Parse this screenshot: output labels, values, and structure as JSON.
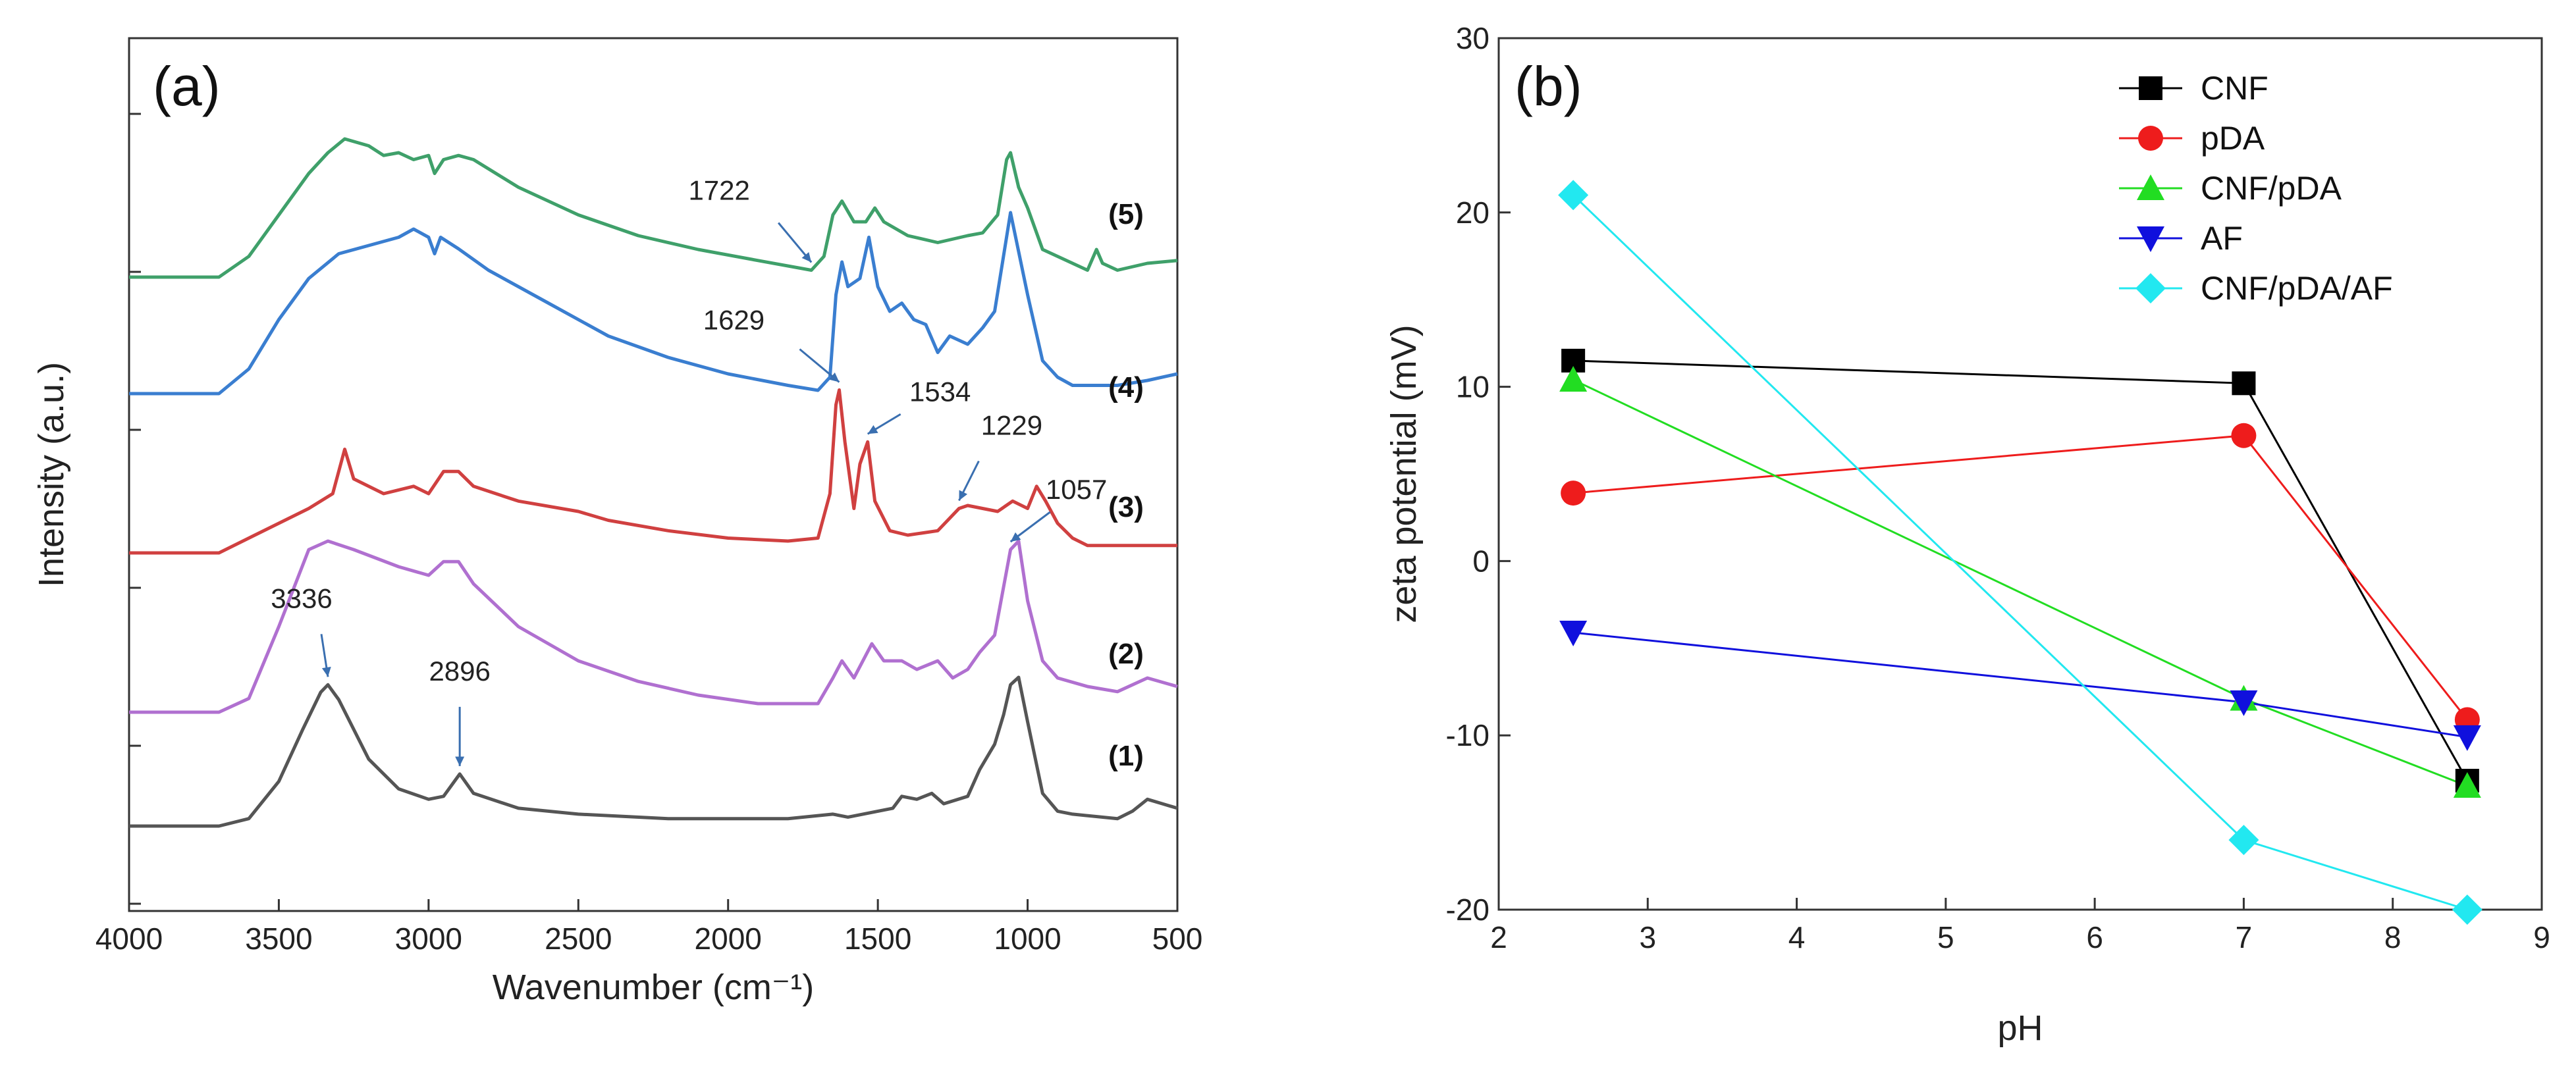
{
  "chart_data": [
    {
      "panel": "(a)",
      "type": "line",
      "title": "",
      "xlabel": "Wavenumber (cm⁻¹)",
      "ylabel": "Intensity (a.u.)",
      "xlim": [
        4000,
        500
      ],
      "x_reversed": true,
      "xticks": [
        4000,
        3500,
        3000,
        2500,
        2000,
        1500,
        1000,
        500
      ],
      "yticks_shown": false,
      "series": [
        {
          "name": "(1)",
          "color": "#555555",
          "offset": 0,
          "points": [
            [
              4000,
              0.0
            ],
            [
              3700,
              0.0
            ],
            [
              3600,
              0.05
            ],
            [
              3500,
              0.3
            ],
            [
              3420,
              0.65
            ],
            [
              3360,
              0.9
            ],
            [
              3336,
              0.95
            ],
            [
              3300,
              0.85
            ],
            [
              3200,
              0.45
            ],
            [
              3100,
              0.25
            ],
            [
              3000,
              0.18
            ],
            [
              2950,
              0.2
            ],
            [
              2896,
              0.35
            ],
            [
              2850,
              0.22
            ],
            [
              2700,
              0.12
            ],
            [
              2500,
              0.08
            ],
            [
              2200,
              0.05
            ],
            [
              2000,
              0.05
            ],
            [
              1800,
              0.05
            ],
            [
              1650,
              0.08
            ],
            [
              1600,
              0.06
            ],
            [
              1450,
              0.12
            ],
            [
              1420,
              0.2
            ],
            [
              1370,
              0.18
            ],
            [
              1320,
              0.22
            ],
            [
              1280,
              0.15
            ],
            [
              1200,
              0.2
            ],
            [
              1160,
              0.38
            ],
            [
              1110,
              0.55
            ],
            [
              1080,
              0.75
            ],
            [
              1057,
              0.95
            ],
            [
              1030,
              1.0
            ],
            [
              1000,
              0.7
            ],
            [
              950,
              0.22
            ],
            [
              900,
              0.1
            ],
            [
              850,
              0.08
            ],
            [
              700,
              0.05
            ],
            [
              650,
              0.1
            ],
            [
              600,
              0.18
            ],
            [
              550,
              0.15
            ],
            [
              500,
              0.12
            ]
          ]
        },
        {
          "name": "(2)",
          "color": "#b070d0",
          "offset": 0,
          "points": [
            [
              4000,
              0.0
            ],
            [
              3700,
              0.0
            ],
            [
              3600,
              0.08
            ],
            [
              3500,
              0.5
            ],
            [
              3400,
              0.95
            ],
            [
              3336,
              1.0
            ],
            [
              3250,
              0.95
            ],
            [
              3100,
              0.85
            ],
            [
              3000,
              0.8
            ],
            [
              2950,
              0.88
            ],
            [
              2900,
              0.88
            ],
            [
              2850,
              0.75
            ],
            [
              2700,
              0.5
            ],
            [
              2500,
              0.3
            ],
            [
              2300,
              0.18
            ],
            [
              2100,
              0.1
            ],
            [
              1900,
              0.05
            ],
            [
              1700,
              0.05
            ],
            [
              1650,
              0.2
            ],
            [
              1620,
              0.3
            ],
            [
              1580,
              0.2
            ],
            [
              1520,
              0.4
            ],
            [
              1480,
              0.3
            ],
            [
              1420,
              0.3
            ],
            [
              1370,
              0.25
            ],
            [
              1300,
              0.3
            ],
            [
              1250,
              0.2
            ],
            [
              1200,
              0.25
            ],
            [
              1160,
              0.35
            ],
            [
              1110,
              0.45
            ],
            [
              1057,
              0.95
            ],
            [
              1030,
              1.0
            ],
            [
              1000,
              0.65
            ],
            [
              950,
              0.3
            ],
            [
              900,
              0.2
            ],
            [
              800,
              0.15
            ],
            [
              700,
              0.12
            ],
            [
              600,
              0.2
            ],
            [
              500,
              0.15
            ]
          ]
        },
        {
          "name": "(3)",
          "color": "#d04040",
          "offset": 0,
          "points": [
            [
              4000,
              0.0
            ],
            [
              3700,
              0.0
            ],
            [
              3600,
              0.1
            ],
            [
              3500,
              0.2
            ],
            [
              3400,
              0.3
            ],
            [
              3320,
              0.4
            ],
            [
              3280,
              0.7
            ],
            [
              3250,
              0.5
            ],
            [
              3150,
              0.4
            ],
            [
              3050,
              0.45
            ],
            [
              3000,
              0.4
            ],
            [
              2950,
              0.55
            ],
            [
              2900,
              0.55
            ],
            [
              2850,
              0.45
            ],
            [
              2700,
              0.35
            ],
            [
              2500,
              0.28
            ],
            [
              2400,
              0.22
            ],
            [
              2200,
              0.15
            ],
            [
              2000,
              0.1
            ],
            [
              1800,
              0.08
            ],
            [
              1700,
              0.1
            ],
            [
              1660,
              0.4
            ],
            [
              1640,
              1.0
            ],
            [
              1629,
              1.1
            ],
            [
              1610,
              0.75
            ],
            [
              1580,
              0.3
            ],
            [
              1560,
              0.6
            ],
            [
              1534,
              0.75
            ],
            [
              1510,
              0.35
            ],
            [
              1460,
              0.15
            ],
            [
              1400,
              0.12
            ],
            [
              1300,
              0.15
            ],
            [
              1229,
              0.3
            ],
            [
              1200,
              0.32
            ],
            [
              1150,
              0.3
            ],
            [
              1100,
              0.28
            ],
            [
              1050,
              0.35
            ],
            [
              1000,
              0.3
            ],
            [
              970,
              0.45
            ],
            [
              940,
              0.35
            ],
            [
              900,
              0.2
            ],
            [
              850,
              0.1
            ],
            [
              800,
              0.05
            ],
            [
              700,
              0.05
            ],
            [
              600,
              0.05
            ],
            [
              500,
              0.05
            ]
          ]
        },
        {
          "name": "(4)",
          "color": "#3a7ed0",
          "offset": 0,
          "points": [
            [
              4000,
              0.0
            ],
            [
              3700,
              0.0
            ],
            [
              3600,
              0.15
            ],
            [
              3500,
              0.45
            ],
            [
              3400,
              0.7
            ],
            [
              3300,
              0.85
            ],
            [
              3200,
              0.9
            ],
            [
              3100,
              0.95
            ],
            [
              3050,
              1.0
            ],
            [
              3000,
              0.95
            ],
            [
              2980,
              0.85
            ],
            [
              2960,
              0.95
            ],
            [
              2900,
              0.88
            ],
            [
              2800,
              0.75
            ],
            [
              2600,
              0.55
            ],
            [
              2400,
              0.35
            ],
            [
              2200,
              0.22
            ],
            [
              2000,
              0.12
            ],
            [
              1800,
              0.05
            ],
            [
              1700,
              0.02
            ],
            [
              1660,
              0.1
            ],
            [
              1640,
              0.6
            ],
            [
              1620,
              0.8
            ],
            [
              1600,
              0.65
            ],
            [
              1560,
              0.7
            ],
            [
              1530,
              0.95
            ],
            [
              1500,
              0.65
            ],
            [
              1460,
              0.5
            ],
            [
              1420,
              0.55
            ],
            [
              1380,
              0.45
            ],
            [
              1340,
              0.42
            ],
            [
              1300,
              0.25
            ],
            [
              1260,
              0.35
            ],
            [
              1200,
              0.3
            ],
            [
              1150,
              0.4
            ],
            [
              1110,
              0.5
            ],
            [
              1057,
              1.1
            ],
            [
              1040,
              0.95
            ],
            [
              1000,
              0.6
            ],
            [
              950,
              0.2
            ],
            [
              900,
              0.1
            ],
            [
              850,
              0.05
            ],
            [
              700,
              0.05
            ],
            [
              600,
              0.08
            ],
            [
              500,
              0.12
            ]
          ]
        },
        {
          "name": "(5)",
          "color": "#3fa06a",
          "offset": 0,
          "points": [
            [
              4000,
              0.0
            ],
            [
              3700,
              0.0
            ],
            [
              3600,
              0.15
            ],
            [
              3500,
              0.45
            ],
            [
              3400,
              0.75
            ],
            [
              3336,
              0.9
            ],
            [
              3280,
              1.0
            ],
            [
              3200,
              0.95
            ],
            [
              3150,
              0.88
            ],
            [
              3100,
              0.9
            ],
            [
              3050,
              0.85
            ],
            [
              3000,
              0.88
            ],
            [
              2980,
              0.75
            ],
            [
              2950,
              0.85
            ],
            [
              2900,
              0.88
            ],
            [
              2850,
              0.85
            ],
            [
              2700,
              0.65
            ],
            [
              2500,
              0.45
            ],
            [
              2300,
              0.3
            ],
            [
              2100,
              0.2
            ],
            [
              1900,
              0.12
            ],
            [
              1722,
              0.05
            ],
            [
              1680,
              0.15
            ],
            [
              1650,
              0.45
            ],
            [
              1620,
              0.55
            ],
            [
              1580,
              0.4
            ],
            [
              1540,
              0.4
            ],
            [
              1510,
              0.5
            ],
            [
              1480,
              0.4
            ],
            [
              1400,
              0.3
            ],
            [
              1300,
              0.25
            ],
            [
              1200,
              0.3
            ],
            [
              1150,
              0.32
            ],
            [
              1100,
              0.45
            ],
            [
              1070,
              0.85
            ],
            [
              1057,
              0.9
            ],
            [
              1030,
              0.65
            ],
            [
              1000,
              0.5
            ],
            [
              950,
              0.2
            ],
            [
              850,
              0.1
            ],
            [
              800,
              0.05
            ],
            [
              770,
              0.2
            ],
            [
              750,
              0.1
            ],
            [
              700,
              0.05
            ],
            [
              600,
              0.1
            ],
            [
              500,
              0.12
            ]
          ]
        }
      ],
      "annotations": [
        {
          "text": "3336",
          "x": 3336,
          "series": "(1)"
        },
        {
          "text": "2896",
          "x": 2896,
          "series": "(1)"
        },
        {
          "text": "1057",
          "x": 1057,
          "series": "(2)"
        },
        {
          "text": "1629",
          "x": 1629,
          "series": "(3)"
        },
        {
          "text": "1534",
          "x": 1534,
          "series": "(3)"
        },
        {
          "text": "1229",
          "x": 1229,
          "series": "(3)"
        },
        {
          "text": "1722",
          "x": 1722,
          "series": "(5)"
        }
      ]
    },
    {
      "panel": "(b)",
      "type": "scatter",
      "connected": true,
      "title": "",
      "xlabel": "pH",
      "ylabel": "zeta potential (mV)",
      "xlim": [
        2,
        9
      ],
      "ylim": [
        -20,
        30
      ],
      "xticks": [
        2,
        3,
        4,
        5,
        6,
        7,
        8,
        9
      ],
      "yticks": [
        -20,
        -10,
        0,
        10,
        20,
        30
      ],
      "legend_position": "top-right",
      "x": [
        2.5,
        7,
        8.5
      ],
      "series": [
        {
          "name": "CNF",
          "color": "#000000",
          "marker": "square",
          "values": [
            11.5,
            10.2,
            -12.6
          ]
        },
        {
          "name": "pDA",
          "color": "#ee1c1c",
          "marker": "circle",
          "values": [
            3.9,
            7.2,
            -9.1
          ]
        },
        {
          "name": "CNF/pDA",
          "color": "#22dd22",
          "marker": "triangle-up",
          "values": [
            10.4,
            -7.9,
            -12.9
          ]
        },
        {
          "name": "AF",
          "color": "#1010dd",
          "marker": "triangle-down",
          "values": [
            -4.1,
            -8.1,
            -10.1
          ]
        },
        {
          "name": "CNF/pDA/AF",
          "color": "#22e8f0",
          "marker": "diamond",
          "values": [
            21.0,
            -16.0,
            -20.0
          ]
        }
      ]
    }
  ]
}
